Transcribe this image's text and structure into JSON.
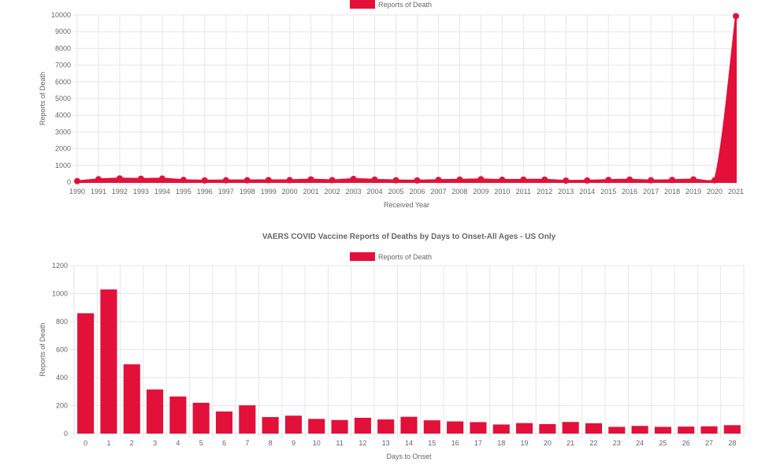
{
  "colors": {
    "series": "#e3103a",
    "grid": "#e6e6e6",
    "text": "#666666"
  },
  "chart_data": [
    {
      "type": "area",
      "title": "",
      "xlabel": "Received Year",
      "ylabel": "Reports of Death",
      "legend": {
        "label": "Reports of Death",
        "position": "top-center"
      },
      "grid": true,
      "ylim": [
        0,
        10000
      ],
      "y_ticks": [
        0,
        1000,
        2000,
        3000,
        4000,
        5000,
        6000,
        7000,
        8000,
        9000,
        10000
      ],
      "categories": [
        "1990",
        "1991",
        "1992",
        "1993",
        "1994",
        "1995",
        "1996",
        "1997",
        "1998",
        "1999",
        "2000",
        "2001",
        "2002",
        "2003",
        "2004",
        "2005",
        "2006",
        "2007",
        "2008",
        "2009",
        "2010",
        "2011",
        "2012",
        "2013",
        "2014",
        "2015",
        "2016",
        "2017",
        "2018",
        "2019",
        "2020",
        "2021"
      ],
      "series": [
        {
          "name": "Reports of Death",
          "values": [
            60,
            170,
            220,
            200,
            210,
            130,
            100,
            110,
            110,
            120,
            120,
            160,
            120,
            190,
            150,
            110,
            100,
            130,
            150,
            170,
            140,
            150,
            150,
            90,
            100,
            130,
            150,
            110,
            130,
            160,
            110,
            9930
          ]
        }
      ]
    },
    {
      "type": "bar",
      "title": "VAERS COVID Vaccine Reports of Deaths by Days to Onset-All Ages - US Only",
      "xlabel": "Days to Onset",
      "ylabel": "Reports of Death",
      "legend": {
        "label": "Reports of Death",
        "position": "top-center"
      },
      "grid": true,
      "ylim": [
        0,
        1200
      ],
      "y_ticks": [
        0,
        200,
        400,
        600,
        800,
        1000,
        1200
      ],
      "categories": [
        "0",
        "1",
        "2",
        "3",
        "4",
        "5",
        "6",
        "7",
        "8",
        "9",
        "10",
        "11",
        "12",
        "13",
        "14",
        "15",
        "16",
        "17",
        "18",
        "19",
        "20",
        "21",
        "22",
        "23",
        "24",
        "25",
        "26",
        "27",
        "28"
      ],
      "series": [
        {
          "name": "Reports of Death",
          "values": [
            860,
            1030,
            495,
            315,
            265,
            220,
            158,
            202,
            118,
            128,
            105,
            97,
            113,
            101,
            120,
            95,
            87,
            82,
            65,
            75,
            68,
            83,
            74,
            48,
            55,
            48,
            50,
            52,
            60
          ]
        }
      ]
    }
  ]
}
